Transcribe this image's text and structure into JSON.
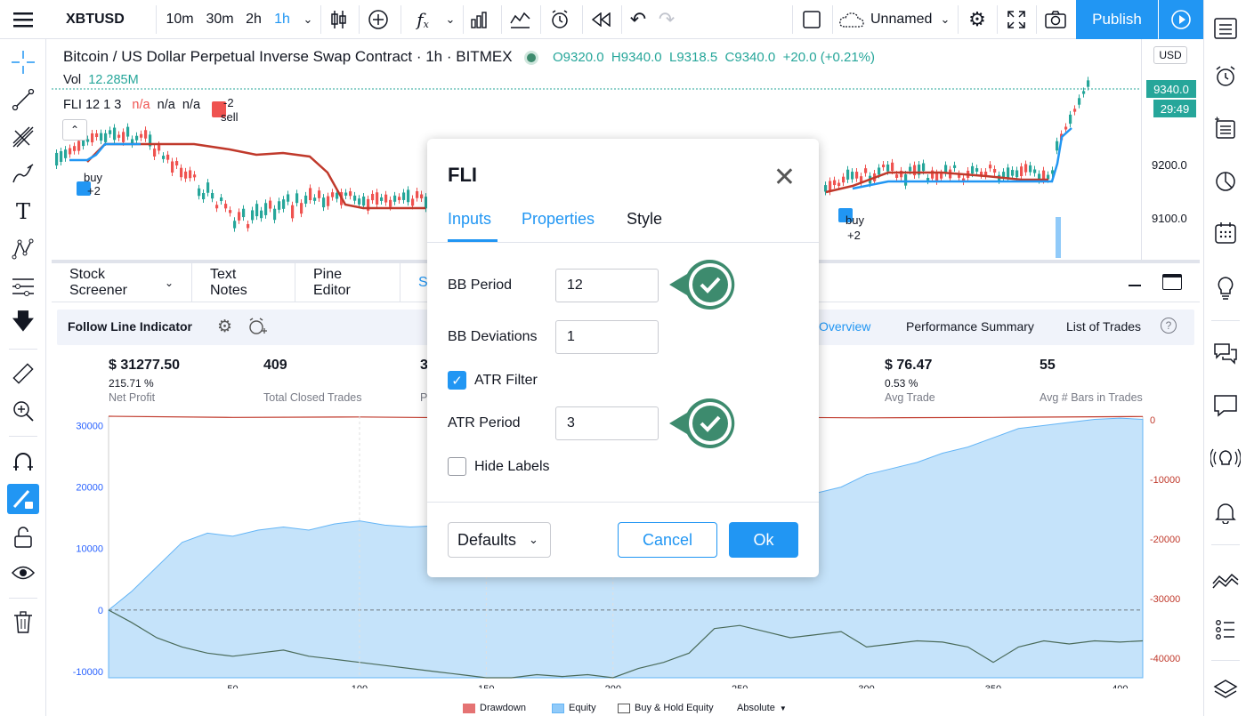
{
  "toolbar": {
    "symbol": "XBTUSD",
    "intervals": [
      "10m",
      "30m",
      "2h",
      "1h"
    ],
    "active_interval": "1h",
    "layout_name": "Unnamed",
    "publish_label": "Publish"
  },
  "chart": {
    "title": "Bitcoin / US Dollar Perpetual Inverse Swap Contract · 1h · BITMEX",
    "ohlc": {
      "o": "9320.0",
      "h": "9340.0",
      "l": "9318.5",
      "c": "9340.0",
      "change": "+20.0 (+0.21%)"
    },
    "vol_label": "Vol",
    "vol_value": "12.285M",
    "indicator_label": "FLI 12 1 3",
    "indicator_values": [
      "n/a",
      "n/a",
      "n/a"
    ],
    "currency": "USD",
    "price_current": "9340.0",
    "countdown": "29:49",
    "price_ticks": [
      "9200.0",
      "9100.0"
    ],
    "signal_labels": {
      "buy1": "buy",
      "buy1_count": "+2",
      "sell1": "sell",
      "sell1_count": "-2",
      "buy2": "buy",
      "buy2_count": "+2"
    },
    "colors": {
      "up": "#26a69a",
      "down": "#ef5350",
      "line_red": "#c0392b",
      "line_blue": "#2196f3"
    }
  },
  "bottom": {
    "tabs": [
      "Stock Screener",
      "Text Notes",
      "Pine Editor",
      "St"
    ],
    "strategy_name": "Follow Line Indicator",
    "report_tabs": [
      "Overview",
      "Performance Summary",
      "List of Trades"
    ],
    "active_report_tab": "Overview",
    "stats": [
      {
        "value": "$ 31277.50",
        "sub": "215.71 %",
        "label": "Net Profit"
      },
      {
        "value": "409",
        "sub": "",
        "label": "Total Closed Trades"
      },
      {
        "value": "3",
        "sub": "",
        "label": "Pe"
      },
      {
        "value": "$ 76.47",
        "sub": "0.53 %",
        "label": "Avg Trade"
      },
      {
        "value": "55",
        "sub": "",
        "label": "Avg # Bars in Trades"
      }
    ],
    "footer": {
      "drawdown": "Drawdown",
      "equity": "Equity",
      "buy_hold": "Buy & Hold Equity",
      "mode": "Absolute"
    }
  },
  "chart_data": {
    "type": "area",
    "x_ticks": [
      50,
      100,
      150,
      200,
      250,
      300,
      350,
      400
    ],
    "y_left_ticks": [
      "30000",
      "20000",
      "10000",
      "0",
      "-10000"
    ],
    "y_right_ticks": [
      "0",
      "-10000",
      "-20000",
      "-30000",
      "-40000"
    ],
    "xlim": [
      1,
      409
    ],
    "ylim_left": [
      -11000,
      31500
    ],
    "series": [
      {
        "name": "Equity",
        "x": [
          1,
          10,
          20,
          30,
          40,
          50,
          60,
          70,
          80,
          90,
          100,
          110,
          120,
          130,
          140,
          150,
          160,
          170,
          180,
          190,
          200,
          210,
          220,
          230,
          240,
          250,
          260,
          270,
          280,
          290,
          300,
          310,
          320,
          330,
          340,
          350,
          360,
          370,
          380,
          390,
          400,
          409
        ],
        "values": [
          0,
          3000,
          7000,
          11000,
          12500,
          12000,
          13000,
          13500,
          13000,
          14000,
          14500,
          13800,
          13500,
          13700,
          13000,
          13200,
          12500,
          12800,
          12500,
          12000,
          12500,
          13000,
          13500,
          14000,
          14500,
          15000,
          16500,
          17500,
          19000,
          20000,
          22000,
          23000,
          24000,
          25500,
          26500,
          28000,
          29500,
          30000,
          30500,
          31000,
          31200,
          31000
        ]
      },
      {
        "name": "Drawdown",
        "x": [
          1,
          50,
          100,
          150,
          200,
          250,
          300,
          350,
          409
        ],
        "values": [
          0,
          -500,
          -300,
          -800,
          -600,
          -400,
          -700,
          -500,
          -100
        ]
      },
      {
        "name": "Buy & Hold Equity",
        "x": [
          1,
          10,
          20,
          30,
          40,
          50,
          60,
          70,
          80,
          90,
          100,
          110,
          120,
          130,
          140,
          150,
          160,
          170,
          180,
          190,
          200,
          210,
          220,
          230,
          240,
          250,
          260,
          270,
          280,
          290,
          300,
          310,
          320,
          330,
          340,
          350,
          360,
          370,
          380,
          390,
          400,
          409
        ],
        "values": [
          0,
          -2000,
          -4500,
          -6000,
          -7000,
          -7500,
          -7000,
          -6500,
          -7500,
          -8000,
          -8500,
          -9000,
          -9500,
          -10000,
          -10500,
          -11000,
          -11000,
          -10500,
          -10800,
          -10500,
          -11000,
          -9500,
          -8500,
          -7000,
          -3000,
          -2500,
          -3500,
          -4500,
          -4000,
          -3500,
          -6000,
          -5500,
          -5000,
          -5200,
          -6000,
          -8500,
          -6000,
          -5000,
          -5500,
          -5000,
          -5200,
          -5000
        ]
      }
    ]
  },
  "dialog": {
    "title": "FLI",
    "tabs": [
      "Inputs",
      "Properties",
      "Style"
    ],
    "active_tab": "Inputs",
    "fields": [
      {
        "label": "BB Period",
        "value": "12"
      },
      {
        "label": "BB Deviations",
        "value": "1"
      },
      {
        "label": "ATR Period",
        "value": "3"
      }
    ],
    "atr_filter_label": "ATR Filter",
    "atr_filter_checked": true,
    "hide_labels_label": "Hide Labels",
    "hide_labels_checked": false,
    "defaults_label": "Defaults",
    "cancel_label": "Cancel",
    "ok_label": "Ok",
    "accent": "#2196f3",
    "check_color": "#3d8b6e"
  }
}
